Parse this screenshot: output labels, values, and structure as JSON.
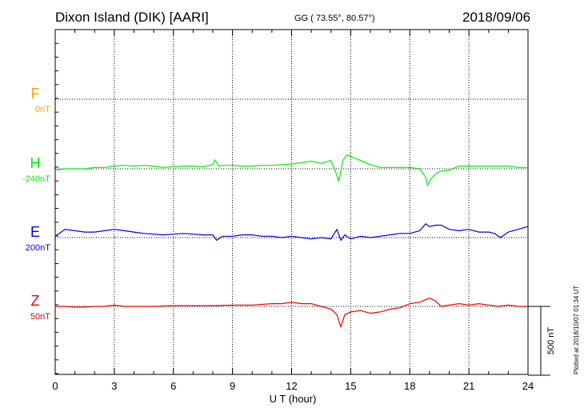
{
  "header": {
    "station": "Dixon Island (DIK)  [AARI]",
    "coords": "GG ( 73.55°,  80.57°)",
    "date": "2018/09/06"
  },
  "footer": {
    "plotted": "Plotted at 2018/10/07 01:34 UT"
  },
  "chart_data": {
    "type": "line",
    "xlabel": "U T (hour)",
    "xlim": [
      0,
      24
    ],
    "xticks": [
      0,
      3,
      6,
      9,
      12,
      15,
      18,
      21,
      24
    ],
    "grid": true,
    "scale_bar_label": "500 nT",
    "scale_bar_nT": 500,
    "series": [
      {
        "name": "F",
        "baseline_label": "0nT",
        "color": "#ffa500",
        "x": [],
        "y": []
      },
      {
        "name": "H",
        "baseline_label": "-240nT",
        "color": "#00ee00",
        "x": [
          0,
          0.5,
          1,
          1.5,
          2,
          2.5,
          3,
          3.5,
          4,
          4.5,
          5,
          5.5,
          6,
          6.5,
          7,
          7.5,
          8,
          8.1,
          8.3,
          8.5,
          9,
          9.5,
          10,
          10.5,
          11,
          11.5,
          12,
          12.5,
          13,
          13.5,
          14,
          14.2,
          14.4,
          14.6,
          14.8,
          15,
          15.5,
          16,
          16.5,
          17,
          17.5,
          18,
          18.5,
          18.8,
          18.9,
          19.1,
          19.3,
          19.5,
          20,
          20.5,
          21,
          21.5,
          22,
          22.5,
          23,
          23.5,
          24
        ],
        "y": [
          -10,
          0,
          0,
          0,
          10,
          10,
          20,
          25,
          20,
          25,
          20,
          10,
          15,
          20,
          20,
          15,
          30,
          65,
          20,
          25,
          25,
          20,
          20,
          25,
          25,
          30,
          35,
          45,
          55,
          40,
          60,
          -10,
          -90,
          60,
          100,
          90,
          60,
          30,
          10,
          10,
          10,
          10,
          0,
          -60,
          -120,
          -70,
          -40,
          -20,
          -10,
          20,
          20,
          20,
          20,
          20,
          20,
          10,
          10
        ]
      },
      {
        "name": "E",
        "baseline_label": "200nT",
        "color": "#0000dd",
        "x": [
          0,
          0.5,
          1,
          1.5,
          2,
          2.5,
          3,
          3.5,
          4,
          4.5,
          5,
          5.5,
          6,
          6.5,
          7,
          7.5,
          8,
          8.2,
          8.5,
          9,
          9.5,
          10,
          10.5,
          11,
          11.5,
          12,
          12.5,
          13,
          13.5,
          14,
          14.3,
          14.5,
          14.7,
          15,
          15.5,
          16,
          16.5,
          17,
          17.5,
          18,
          18.5,
          18.8,
          19,
          19.3,
          19.6,
          20,
          20.5,
          21,
          21.5,
          22,
          22.3,
          22.6,
          23,
          23.5,
          24
        ],
        "y": [
          10,
          60,
          50,
          40,
          40,
          50,
          60,
          50,
          40,
          30,
          25,
          20,
          25,
          30,
          25,
          20,
          20,
          -20,
          10,
          10,
          20,
          20,
          10,
          10,
          0,
          10,
          0,
          -10,
          0,
          -10,
          60,
          -20,
          20,
          -10,
          10,
          0,
          10,
          20,
          30,
          30,
          50,
          100,
          80,
          90,
          90,
          60,
          50,
          60,
          40,
          40,
          30,
          0,
          40,
          60,
          80
        ]
      },
      {
        "name": "Z",
        "baseline_label": "50nT",
        "color": "#ee0000",
        "x": [
          0,
          0.5,
          1,
          1.5,
          2,
          2.5,
          3,
          3.5,
          4,
          5,
          6,
          7,
          8,
          9,
          10,
          11,
          11.5,
          12,
          12.5,
          13,
          13.5,
          14,
          14.3,
          14.5,
          14.7,
          15,
          15.5,
          16,
          16.5,
          17,
          17.5,
          18,
          18.5,
          19,
          19.3,
          19.6,
          20,
          20.5,
          21,
          21.5,
          22,
          22.5,
          23,
          23.5,
          24
        ],
        "y": [
          0,
          0,
          -5,
          -5,
          0,
          0,
          10,
          0,
          0,
          0,
          5,
          5,
          5,
          10,
          10,
          20,
          20,
          30,
          20,
          20,
          0,
          -20,
          -60,
          -150,
          -60,
          -40,
          -30,
          -50,
          -40,
          -20,
          -10,
          20,
          30,
          60,
          40,
          0,
          10,
          20,
          10,
          20,
          10,
          0,
          10,
          0,
          0
        ]
      }
    ]
  }
}
